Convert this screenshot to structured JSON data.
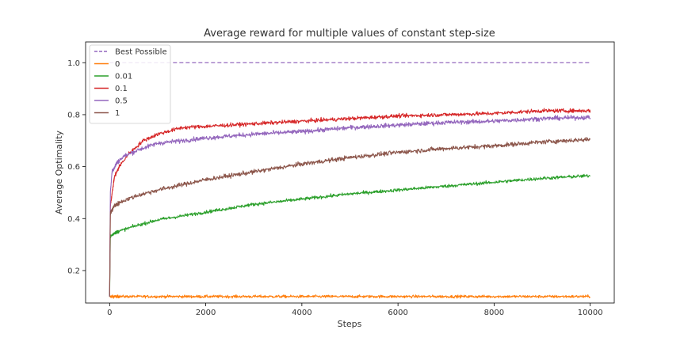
{
  "chart_data": {
    "type": "line",
    "title": "Average reward for multiple values of constant step-size",
    "xlabel": "Steps",
    "ylabel": "Average Optimality",
    "xlim": [
      -500,
      10500
    ],
    "ylim": [
      0.075,
      1.08
    ],
    "xticks": [
      0,
      2000,
      4000,
      6000,
      8000,
      10000
    ],
    "yticks": [
      0.2,
      0.4,
      0.6,
      0.8,
      1.0
    ],
    "xtick_labels": [
      "0",
      "2000",
      "4000",
      "6000",
      "8000",
      "10000"
    ],
    "ytick_labels": [
      "0.2",
      "0.4",
      "0.6",
      "0.8",
      "1.0"
    ],
    "grid": false,
    "legend_position": "top-left",
    "series": [
      {
        "name": "Best Possible",
        "color": "#9467bd",
        "dashed": true,
        "noise": 0,
        "x": [
          0,
          10000
        ],
        "y": [
          1.0,
          1.0
        ]
      },
      {
        "name": "0",
        "color": "#ff7f0e",
        "noise": 0.005,
        "x": [
          0,
          10000
        ],
        "y": [
          0.1,
          0.1
        ]
      },
      {
        "name": "0.01",
        "color": "#2ca02c",
        "noise": 0.006,
        "x": [
          0,
          15,
          100,
          500,
          1000,
          2000,
          3000,
          4000,
          5000,
          6000,
          7000,
          8000,
          9000,
          10000
        ],
        "y": [
          0.1,
          0.33,
          0.345,
          0.37,
          0.395,
          0.425,
          0.455,
          0.475,
          0.495,
          0.51,
          0.525,
          0.54,
          0.555,
          0.565
        ]
      },
      {
        "name": "0.1",
        "color": "#d62728",
        "noise": 0.007,
        "x": [
          0,
          15,
          100,
          200,
          400,
          700,
          1000,
          1500,
          2000,
          3000,
          4000,
          5000,
          6000,
          7000,
          8000,
          9000,
          10000
        ],
        "y": [
          0.1,
          0.45,
          0.56,
          0.6,
          0.65,
          0.7,
          0.725,
          0.75,
          0.755,
          0.765,
          0.775,
          0.785,
          0.795,
          0.8,
          0.805,
          0.815,
          0.815
        ]
      },
      {
        "name": "0.5",
        "color": "#9467bd",
        "noise": 0.008,
        "x": [
          0,
          15,
          50,
          150,
          300,
          600,
          1000,
          1500,
          2000,
          3000,
          4000,
          5000,
          6000,
          7000,
          8000,
          9000,
          10000
        ],
        "y": [
          0.1,
          0.5,
          0.58,
          0.615,
          0.64,
          0.665,
          0.69,
          0.7,
          0.71,
          0.725,
          0.735,
          0.75,
          0.76,
          0.77,
          0.775,
          0.785,
          0.79
        ]
      },
      {
        "name": "1",
        "color": "#8c564b",
        "noise": 0.008,
        "x": [
          0,
          15,
          100,
          300,
          600,
          1000,
          1500,
          2000,
          3000,
          4000,
          5000,
          6000,
          7000,
          8000,
          9000,
          10000
        ],
        "y": [
          0.1,
          0.42,
          0.45,
          0.47,
          0.49,
          0.51,
          0.53,
          0.55,
          0.58,
          0.61,
          0.635,
          0.655,
          0.67,
          0.68,
          0.695,
          0.705
        ]
      }
    ]
  }
}
